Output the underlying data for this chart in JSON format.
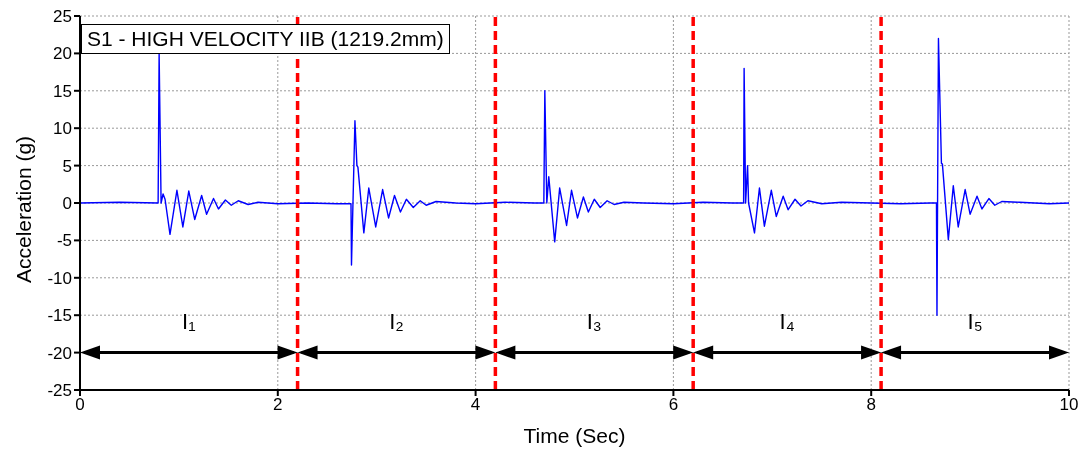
{
  "chart_data": {
    "type": "line",
    "title": "S1 - HIGH VELOCITY IIB (1219.2mm)",
    "xlabel": "Time (Sec)",
    "ylabel": "Acceleration (g)",
    "xlim": [
      0,
      10
    ],
    "xticks": [
      0,
      2,
      4,
      6,
      8,
      10
    ],
    "ylim": [
      -25,
      25
    ],
    "yticks": [
      -25,
      -20,
      -15,
      -10,
      -5,
      0,
      5,
      10,
      15,
      20,
      25
    ],
    "grid": true,
    "line_style": "solid",
    "series": [
      {
        "color": "#0000ff",
        "x": [
          0,
          0.4,
          0.79,
          0.8,
          0.82,
          0.84,
          0.86,
          0.91,
          0.98,
          1.04,
          1.1,
          1.16,
          1.23,
          1.28,
          1.35,
          1.4,
          1.47,
          1.53,
          1.6,
          1.7,
          1.8,
          2.0,
          2.3,
          2.6,
          2.74,
          2.745,
          2.78,
          2.8,
          2.81,
          2.87,
          2.92,
          2.99,
          3.06,
          3.12,
          3.18,
          3.24,
          3.3,
          3.37,
          3.44,
          3.5,
          3.6,
          3.8,
          4.0,
          4.3,
          4.6,
          4.69,
          4.7,
          4.72,
          4.74,
          4.8,
          4.85,
          4.92,
          4.97,
          5.03,
          5.09,
          5.14,
          5.2,
          5.26,
          5.33,
          5.4,
          5.5,
          5.7,
          6.0,
          6.3,
          6.6,
          6.71,
          6.715,
          6.73,
          6.75,
          6.76,
          6.82,
          6.87,
          6.92,
          6.99,
          7.04,
          7.11,
          7.16,
          7.23,
          7.29,
          7.36,
          7.5,
          7.7,
          8.0,
          8.3,
          8.6,
          8.66,
          8.665,
          8.68,
          8.71,
          8.72,
          8.78,
          8.83,
          8.88,
          8.95,
          9.0,
          9.07,
          9.12,
          9.19,
          9.25,
          9.32,
          9.5,
          9.8,
          10
        ],
        "values": [
          0,
          0.1,
          0,
          20,
          0,
          1.2,
          0.5,
          -4.2,
          1.7,
          -3.2,
          1.6,
          -2.2,
          1,
          -1.5,
          0.6,
          -0.8,
          0.4,
          -0.3,
          0.3,
          -0.2,
          0.1,
          -0.1,
          0,
          -0.1,
          -0.1,
          -8.3,
          11,
          5,
          4.8,
          -4,
          2,
          -3.2,
          1.8,
          -2,
          1,
          -1.2,
          0.5,
          -0.6,
          0.3,
          -0.3,
          0.2,
          0,
          -0.1,
          0.1,
          0,
          0,
          15,
          0,
          3.5,
          -5.2,
          2,
          -3,
          1.7,
          -2,
          0.8,
          -1.2,
          0.5,
          -0.6,
          0.3,
          -0.2,
          0.1,
          0,
          -0.1,
          0.1,
          0,
          0,
          18,
          0,
          5,
          0,
          -4,
          2,
          -3.1,
          1.7,
          -1.8,
          0.9,
          -0.9,
          0.5,
          -0.4,
          0.3,
          -0.1,
          0.1,
          0,
          -0.1,
          0,
          0,
          -15,
          22,
          5.3,
          5.2,
          -4.9,
          2.3,
          -3.2,
          1.8,
          -1.5,
          0.9,
          -0.8,
          0.6,
          -0.3,
          0.2,
          0.1,
          -0.1,
          0
        ]
      }
    ],
    "ref_lines": [
      {
        "axis": "x",
        "value": 2.2,
        "color": "#ff0000",
        "line_style": "dashed"
      },
      {
        "axis": "x",
        "value": 4.2,
        "color": "#ff0000",
        "line_style": "dashed"
      },
      {
        "axis": "x",
        "value": 6.2,
        "color": "#ff0000",
        "line_style": "dashed"
      },
      {
        "axis": "x",
        "value": 8.1,
        "color": "#ff0000",
        "line_style": "dashed"
      }
    ],
    "annotations": [
      "I₁",
      "I₂",
      "I₃",
      "I₄",
      "I₅"
    ]
  }
}
